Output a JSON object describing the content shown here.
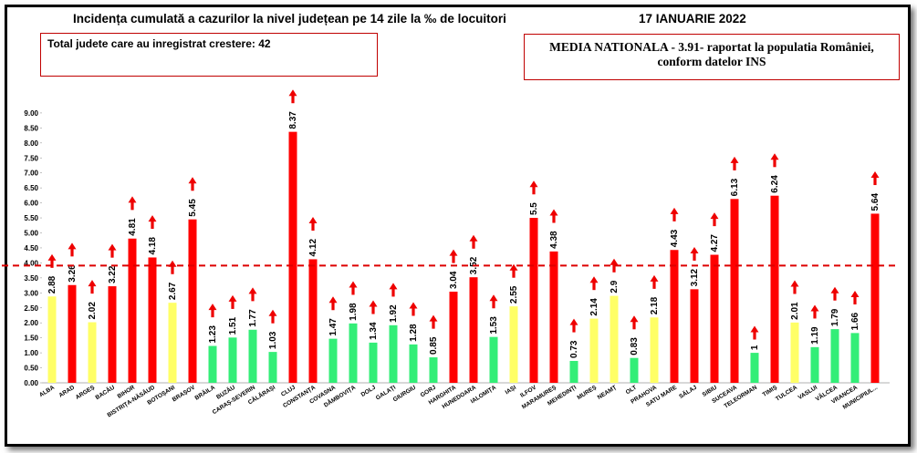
{
  "header": {
    "title": "Incidența cumulată a cazurilor la nivel județean pe 14 zile la ‰ de locuitori",
    "date": "17 IANUARIE 2022"
  },
  "info_left": "Total judete care au inregistrat crestere: 42",
  "info_right": {
    "line1": "MEDIA NATIONALA - 3.91-  raportat la populatia României,",
    "line2": "conform datelor INS"
  },
  "colors": {
    "red": "#ff0000",
    "yellow": "#ffff66",
    "green": "#33ee77",
    "arrow": "#ee0000",
    "reference_line": "#dd0000"
  },
  "chart_data": {
    "type": "bar",
    "ylim": [
      0,
      9
    ],
    "yticks": [
      "0.00",
      "0.50",
      "1.00",
      "1.50",
      "2.00",
      "2.50",
      "3.00",
      "3.50",
      "4.00",
      "4.50",
      "5.00",
      "5.50",
      "6.00",
      "6.50",
      "7.00",
      "7.50",
      "8.00",
      "8.50",
      "9.00"
    ],
    "reference_line": 3.91,
    "trend": "increase",
    "categories": [
      "ALBA",
      "ARAD",
      "ARGEȘ",
      "BACĂU",
      "BIHOR",
      "BISTRIȚA-NĂSĂUD",
      "BOTOȘANI",
      "BRAȘOV",
      "BRĂILA",
      "BUZĂU",
      "CARAȘ-SEVERIN",
      "CĂLĂRAȘI",
      "CLUJ",
      "CONSTANȚA",
      "COVASNA",
      "DÂMBOVIȚA",
      "DOLJ",
      "GALAȚI",
      "GIURGIU",
      "GORJ",
      "HARGHITA",
      "HUNEDOARA",
      "IALOMIȚA",
      "IAȘI",
      "ILFOV",
      "MARAMUREȘ",
      "MEHEDINȚI",
      "MUREȘ",
      "NEAMȚ",
      "OLT",
      "PRAHOVA",
      "SATU MARE",
      "SĂLAJ",
      "SIBIU",
      "SUCEAVA",
      "TELEORMAN",
      "TIMIȘ",
      "TULCEA",
      "VASLUI",
      "VÂLCEA",
      "VRANCEA",
      "MUNICIPIUL..."
    ],
    "values": [
      2.88,
      3.26,
      2.02,
      3.22,
      4.81,
      4.18,
      2.67,
      5.45,
      1.23,
      1.51,
      1.77,
      1.03,
      8.37,
      4.12,
      1.47,
      1.98,
      1.34,
      1.92,
      1.28,
      0.85,
      3.04,
      3.52,
      1.53,
      2.55,
      5.5,
      4.38,
      0.73,
      2.14,
      2.9,
      0.83,
      2.18,
      4.43,
      3.12,
      4.27,
      6.13,
      1,
      6.24,
      2.01,
      1.19,
      1.79,
      1.66,
      5.64
    ],
    "labels": [
      "2.88",
      "3.26",
      "2.02",
      "3.22",
      "4.81",
      "4.18",
      "2.67",
      "5.45",
      "1.23",
      "1.51",
      "1.77",
      "1.03",
      "8.37",
      "4.12",
      "1.47",
      "1.98",
      "1.34",
      "1.92",
      "1.28",
      "0.85",
      "3.04",
      "3.52",
      "1.53",
      "2.55",
      "5.5",
      "4.38",
      "0.73",
      "2.14",
      "2.9",
      "0.83",
      "2.18",
      "4.43",
      "3.12",
      "4.27",
      "6.13",
      "1",
      "6.24",
      "2.01",
      "1.19",
      "1.79",
      "1.66",
      "5.64"
    ],
    "bar_colors": [
      "yellow",
      "red",
      "yellow",
      "red",
      "red",
      "red",
      "yellow",
      "red",
      "green",
      "green",
      "green",
      "green",
      "red",
      "red",
      "green",
      "green",
      "green",
      "green",
      "green",
      "green",
      "red",
      "red",
      "green",
      "yellow",
      "red",
      "red",
      "green",
      "yellow",
      "yellow",
      "green",
      "yellow",
      "red",
      "red",
      "red",
      "red",
      "green",
      "red",
      "yellow",
      "green",
      "green",
      "green",
      "red"
    ]
  }
}
